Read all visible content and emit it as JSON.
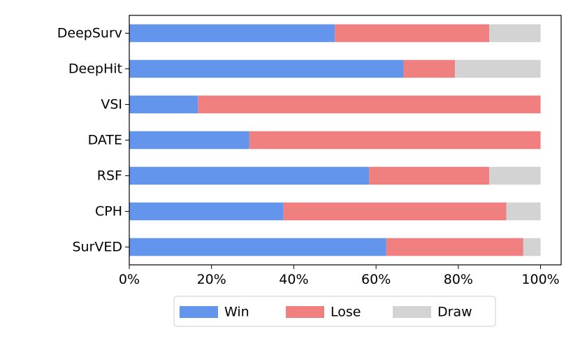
{
  "chart_data": {
    "type": "bar",
    "orientation": "horizontal",
    "stacked": true,
    "categories": [
      "DeepSurv",
      "DeepHit",
      "VSI",
      "DATE",
      "RSF",
      "CPH",
      "SurVED"
    ],
    "series": [
      {
        "name": "Win",
        "color": "#6495ED",
        "values": [
          50.0,
          66.7,
          16.7,
          29.2,
          58.3,
          37.5,
          62.5
        ]
      },
      {
        "name": "Lose",
        "color": "#F08080",
        "values": [
          37.5,
          12.5,
          83.3,
          70.8,
          29.2,
          54.2,
          33.3
        ]
      },
      {
        "name": "Draw",
        "color": "#D3D3D3",
        "values": [
          12.5,
          20.8,
          0.0,
          0.0,
          12.5,
          8.3,
          4.2
        ]
      }
    ],
    "xlim": [
      0,
      105
    ],
    "xticks": [
      0,
      20,
      40,
      60,
      80,
      100
    ],
    "xtick_labels": [
      "0%",
      "20%",
      "40%",
      "60%",
      "80%",
      "100%"
    ],
    "grid": false,
    "legend_position": "bottom"
  }
}
